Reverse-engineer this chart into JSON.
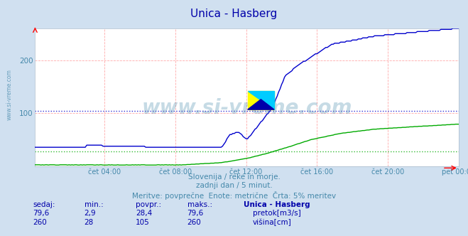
{
  "title": "Unica - Hasberg",
  "title_color": "#0000aa",
  "bg_color": "#d0e0f0",
  "plot_bg_color": "#ffffff",
  "grid_color": "#ffaaaa",
  "xlabel_ticks": [
    "čet 04:00",
    "čet 08:00",
    "čet 12:00",
    "čet 16:00",
    "čet 20:00",
    "pet 00:00"
  ],
  "ylim": [
    0,
    260
  ],
  "yticks": [
    100,
    200
  ],
  "num_points": 288,
  "pretok_color": "#00aa00",
  "visina_color": "#0000cc",
  "avg_visina": 105,
  "avg_pretok": 28.4,
  "subtitle1": "Slovenija / reke in morje.",
  "subtitle2": "zadnji dan / 5 minut.",
  "subtitle3": "Meritve: povprečne  Enote: metrične  Črta: 5% meritev",
  "subtitle_color": "#4488aa",
  "table_header": [
    "sedaj:",
    "min.:",
    "povpr.:",
    "maks.:",
    "Unica - Hasberg"
  ],
  "table_row1": [
    "79,6",
    "2,9",
    "28,4",
    "79,6",
    "pretok[m3/s]"
  ],
  "table_row2": [
    "260",
    "28",
    "105",
    "260",
    "višina[cm]"
  ],
  "table_color": "#0000aa",
  "watermark": "www.si-vreme.com",
  "watermark_color": "#4488aa",
  "logo_colors": [
    "#ffff00",
    "#00ccff",
    "#0000aa"
  ],
  "side_label": "www.si-vreme.com"
}
